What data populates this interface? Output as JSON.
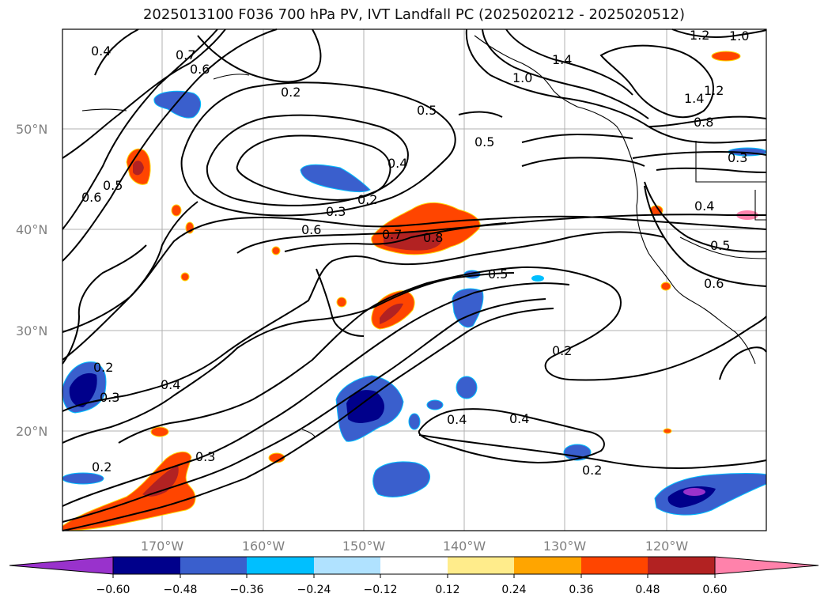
{
  "title": "2025013100 F036 700 hPa PV, IVT Landfall PC (2025020212 - 2025020512)",
  "map": {
    "lat_labels": [
      "50°N",
      "40°N",
      "30°N",
      "20°N"
    ],
    "lon_labels": [
      "170°W",
      "160°W",
      "150°W",
      "140°W",
      "130°W",
      "120°W"
    ],
    "contour_labels": [
      {
        "text": "0.4",
        "id": "pv-04-nw"
      },
      {
        "text": "0.7",
        "id": "pv-07-n"
      },
      {
        "text": "0.6",
        "id": "pv-06-n"
      },
      {
        "text": "0.2",
        "id": "pv-02-n"
      },
      {
        "text": "0.5",
        "id": "pv-05-c"
      },
      {
        "text": "0.5",
        "id": "pv-05-c2"
      },
      {
        "text": "0.4",
        "id": "pv-04-c"
      },
      {
        "text": "0.2",
        "id": "pv-02-c"
      },
      {
        "text": "0.3",
        "id": "pv-03-c"
      },
      {
        "text": "0.6",
        "id": "pv-06-c"
      },
      {
        "text": "0.7",
        "id": "pv-07-c"
      },
      {
        "text": "0.8",
        "id": "pv-08-c"
      },
      {
        "text": "0.5",
        "id": "pv-05-w"
      },
      {
        "text": "0.6",
        "id": "pv-06-w"
      },
      {
        "text": "0.5",
        "id": "pv-05-e"
      },
      {
        "text": "0.2",
        "id": "pv-02-se"
      },
      {
        "text": "0.4",
        "id": "pv-04-s"
      },
      {
        "text": "0.4",
        "id": "pv-04-s2"
      },
      {
        "text": "0.2",
        "id": "pv-02-s"
      },
      {
        "text": "0.4",
        "id": "pv-04-sw"
      },
      {
        "text": "0.3",
        "id": "pv-03-sw"
      },
      {
        "text": "0.2",
        "id": "pv-02-sw"
      },
      {
        "text": "0.3",
        "id": "pv-03-ss"
      },
      {
        "text": "0.2",
        "id": "pv-02-ww"
      },
      {
        "text": "1.0",
        "id": "pv-10-ne"
      },
      {
        "text": "1.4",
        "id": "pv-14-ne"
      },
      {
        "text": "1.2",
        "id": "pv-12-ne"
      },
      {
        "text": "1.0",
        "id": "pv-10-ne2"
      },
      {
        "text": "1.4",
        "id": "pv-14-e"
      },
      {
        "text": "1.2",
        "id": "pv-12-e"
      },
      {
        "text": "0.8",
        "id": "pv-08-e"
      },
      {
        "text": "0.4",
        "id": "pv-04-e"
      },
      {
        "text": "0.5",
        "id": "pv-05-e2"
      },
      {
        "text": "0.6",
        "id": "pv-06-e"
      },
      {
        "text": "0.3",
        "id": "pv-03-e"
      }
    ]
  },
  "colorbar": {
    "tick_labels": [
      "−0.60",
      "−0.48",
      "−0.36",
      "−0.24",
      "−0.12",
      "0.12",
      "0.24",
      "0.36",
      "0.48",
      "0.60"
    ],
    "colors": [
      "#9932cc",
      "#00008b",
      "#3a5fcd",
      "#00bfff",
      "#b0e2ff",
      "#ffffff",
      "#ffec8b",
      "#ffa500",
      "#ff4500",
      "#b22222",
      "#ff82ab"
    ]
  }
}
